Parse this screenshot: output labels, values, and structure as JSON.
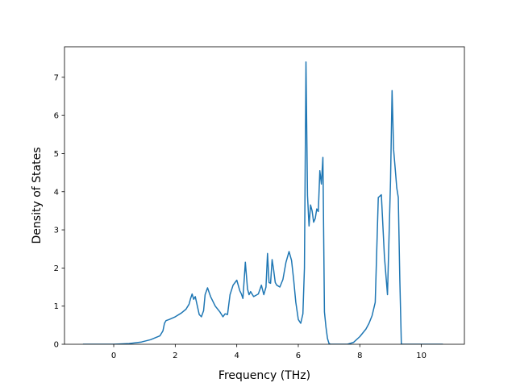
{
  "chart_data": {
    "type": "line",
    "title": "",
    "xlabel": "Frequency (THz)",
    "ylabel": "Density of States",
    "xlim": [
      -1.6,
      11.4
    ],
    "ylim": [
      0,
      7.8
    ],
    "xticks": [
      0,
      2,
      4,
      6,
      8,
      10
    ],
    "yticks": [
      0,
      1,
      2,
      3,
      4,
      5,
      6,
      7
    ],
    "grid": false,
    "legend": "none",
    "series": [
      {
        "color": "#1f77b4",
        "x": [
          -1.0,
          0.0,
          0.5,
          0.9,
          1.2,
          1.5,
          1.6,
          1.65,
          1.7,
          1.8,
          2.0,
          2.2,
          2.35,
          2.45,
          2.5,
          2.55,
          2.6,
          2.65,
          2.72,
          2.78,
          2.85,
          2.92,
          2.97,
          3.05,
          3.15,
          3.3,
          3.45,
          3.55,
          3.62,
          3.7,
          3.78,
          3.88,
          4.0,
          4.1,
          4.15,
          4.2,
          4.28,
          4.35,
          4.4,
          4.45,
          4.55,
          4.7,
          4.8,
          4.88,
          4.95,
          5.0,
          5.05,
          5.1,
          5.15,
          5.2,
          5.25,
          5.3,
          5.4,
          5.5,
          5.6,
          5.7,
          5.78,
          5.85,
          5.92,
          6.0,
          6.08,
          6.15,
          6.2,
          6.25,
          6.3,
          6.35,
          6.4,
          6.45,
          6.5,
          6.55,
          6.6,
          6.65,
          6.7,
          6.75,
          6.8,
          6.85,
          6.9,
          6.95,
          7.0,
          7.05,
          7.1,
          7.2,
          7.4,
          7.6,
          7.8,
          8.0,
          8.2,
          8.3,
          8.4,
          8.5,
          8.6,
          8.7,
          8.8,
          8.9,
          9.0,
          9.05,
          9.1,
          9.15,
          9.2,
          9.25,
          9.3,
          9.35,
          9.4,
          9.45,
          9.5,
          9.6,
          9.7,
          9.75,
          9.8,
          10.0,
          10.7
        ],
        "values": [
          0.0,
          0.0,
          0.02,
          0.06,
          0.12,
          0.22,
          0.35,
          0.55,
          0.62,
          0.65,
          0.72,
          0.82,
          0.92,
          1.05,
          1.2,
          1.32,
          1.18,
          1.25,
          1.0,
          0.78,
          0.72,
          0.88,
          1.3,
          1.48,
          1.25,
          1.0,
          0.85,
          0.72,
          0.8,
          0.78,
          1.3,
          1.55,
          1.68,
          1.4,
          1.32,
          1.2,
          2.15,
          1.45,
          1.3,
          1.38,
          1.25,
          1.32,
          1.55,
          1.3,
          1.5,
          2.38,
          1.62,
          1.6,
          2.22,
          1.95,
          1.62,
          1.55,
          1.5,
          1.7,
          2.15,
          2.43,
          2.2,
          1.7,
          1.1,
          0.65,
          0.55,
          0.8,
          2.0,
          7.4,
          3.9,
          3.1,
          3.65,
          3.5,
          3.2,
          3.3,
          3.55,
          3.48,
          4.55,
          4.2,
          4.9,
          0.85,
          0.45,
          0.15,
          0.02,
          0.0,
          0.0,
          0.0,
          0.0,
          0.0,
          0.05,
          0.2,
          0.4,
          0.55,
          0.75,
          1.1,
          3.85,
          3.92,
          2.3,
          1.3,
          4.3,
          6.65,
          5.1,
          4.6,
          4.1,
          3.85,
          1.7,
          0.0,
          0.0,
          0.0,
          0.0,
          0.0,
          0.0,
          0.0,
          0.0,
          0.0,
          0.0
        ]
      }
    ]
  }
}
